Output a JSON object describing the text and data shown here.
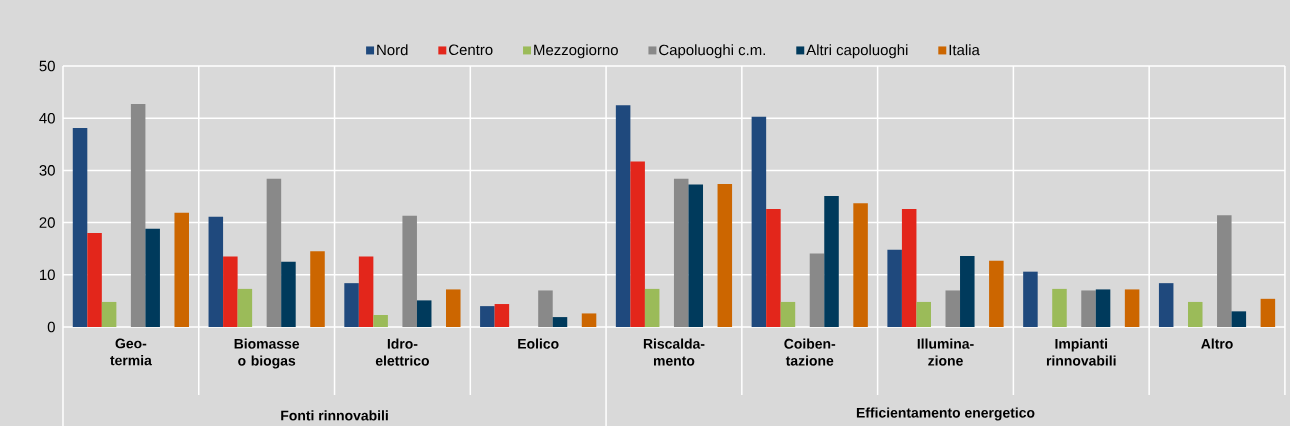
{
  "chart_data": {
    "type": "bar",
    "categories": [
      "Geo-termia",
      "Biomasse o biogas",
      "Idro-elettrico",
      "Eolico",
      "Riscalda-mento",
      "Coiben-tazione",
      "Illumina-zione",
      "Impianti rinnovabili",
      "Altro"
    ],
    "series": [
      {
        "name": "Nord",
        "color": "#1f497d",
        "values": [
          38.1,
          21.1,
          8.4,
          4.0,
          42.5,
          40.3,
          14.8,
          10.6,
          8.4
        ]
      },
      {
        "name": "Centro",
        "color": "#e3261b",
        "values": [
          18.0,
          13.5,
          13.5,
          4.4,
          31.7,
          22.6,
          22.6,
          null,
          null
        ]
      },
      {
        "name": "Mezzogiorno",
        "color": "#9bbb59",
        "values": [
          4.8,
          7.3,
          2.3,
          null,
          7.3,
          4.8,
          4.8,
          7.3,
          4.8
        ]
      },
      {
        "name": "Capoluoghi c.m.",
        "color": "#898989",
        "values": [
          42.7,
          28.4,
          21.3,
          7.0,
          28.4,
          14.1,
          7.0,
          7.0,
          21.4
        ]
      },
      {
        "name": "Altri capoluoghi",
        "color": "#003a5c",
        "values": [
          18.8,
          12.5,
          5.1,
          1.9,
          27.3,
          25.1,
          13.6,
          7.2,
          3.0
        ]
      },
      {
        "name": "Italia",
        "color": "#cc6600",
        "values": [
          21.9,
          14.5,
          7.2,
          2.6,
          27.4,
          23.7,
          12.7,
          7.2,
          5.4
        ]
      }
    ],
    "ylim": [
      0,
      50
    ],
    "yticks": [
      0,
      10,
      20,
      30,
      40,
      50
    ],
    "grid": true,
    "legend": "top",
    "annotations": [
      "Fonti rinnovabili",
      "Efficientamento energetico"
    ]
  }
}
